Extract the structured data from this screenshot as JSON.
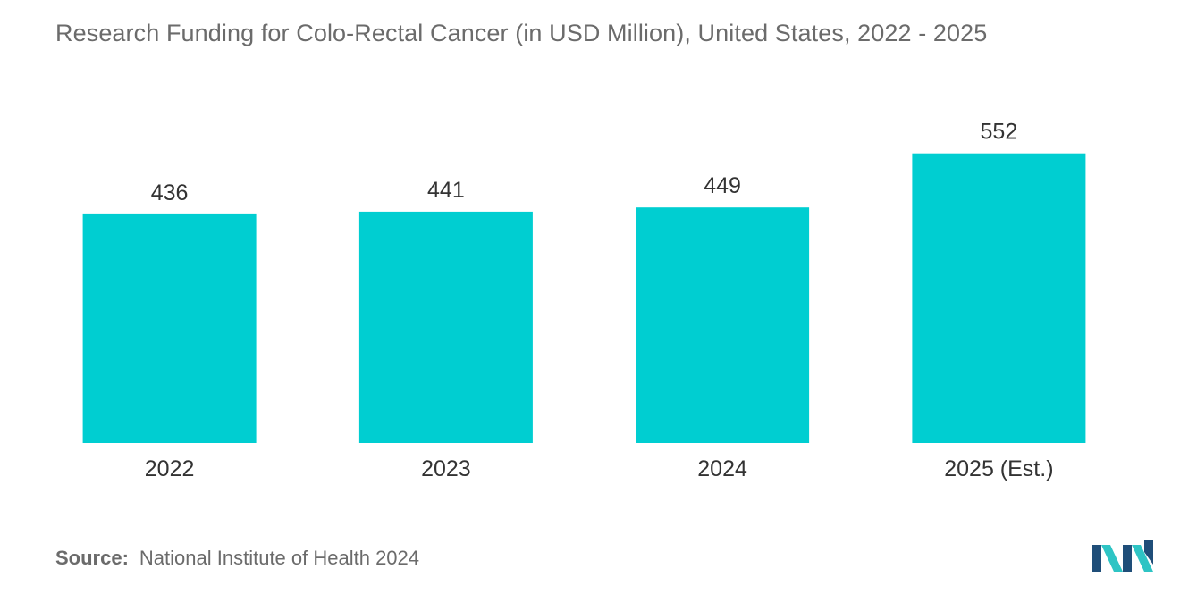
{
  "chart_data": {
    "type": "bar",
    "title": "Research Funding for Colo-Rectal Cancer (in USD Million), United States, 2022 - 2025",
    "xlabel": "",
    "ylabel": "",
    "categories": [
      "2022",
      "2023",
      "2024",
      "2025 (Est.)"
    ],
    "values": [
      436,
      441,
      449,
      552
    ],
    "data_labels": [
      "436",
      "441",
      "449",
      "552"
    ],
    "ylim": [
      0,
      640
    ],
    "grid": false,
    "legend": "none",
    "bar_color": "#00CED1"
  },
  "source": {
    "label": "Source:",
    "text": "National Institute of Health 2024"
  },
  "colors": {
    "title_text": "#6b6b6b",
    "tick_text": "#333333",
    "logo_dark": "#1f4e79",
    "logo_light": "#2ec4c4"
  }
}
